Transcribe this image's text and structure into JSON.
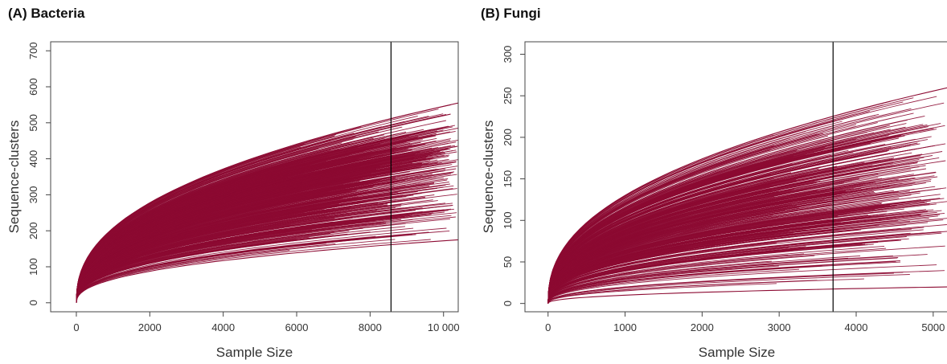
{
  "panels": {
    "a": {
      "title": "(A) Bacteria"
    },
    "b": {
      "title": "(B) Fungi"
    }
  },
  "chart_data": [
    {
      "type": "line",
      "title": "(A) Bacteria",
      "xlabel": "Sample Size",
      "ylabel": "Sequence-clusters",
      "xlim": [
        -700,
        10400
      ],
      "ylim": [
        -25,
        725
      ],
      "x_ticks": [
        0,
        2000,
        4000,
        6000,
        8000,
        10000
      ],
      "x_tick_labels": [
        "0",
        "2000",
        "4000",
        "6000",
        "8000",
        "10 000"
      ],
      "y_ticks": [
        0,
        100,
        200,
        300,
        400,
        500,
        600,
        700
      ],
      "y_tick_labels": [
        "0",
        "100",
        "200",
        "300",
        "400",
        "500",
        "600",
        "700"
      ],
      "vline_x": 8570,
      "line_color": "#8c0a32",
      "series_count": 700,
      "series_summary": {
        "x_max": 10400,
        "final_values_min": 175,
        "final_values_max": 555,
        "final_values_bulk_range": [
          300,
          500
        ],
        "curve_shape": "concave rarefaction curves rising from 0 at x=0"
      }
    },
    {
      "type": "line",
      "title": "(B) Fungi",
      "xlabel": "Sample Size",
      "ylabel": "Sequence-clusters",
      "xlim": [
        -300,
        5200
      ],
      "ylim": [
        -10,
        315
      ],
      "x_ticks": [
        0,
        1000,
        2000,
        3000,
        4000,
        5000
      ],
      "x_tick_labels": [
        "0",
        "1000",
        "2000",
        "3000",
        "4000",
        "5000"
      ],
      "y_ticks": [
        0,
        50,
        100,
        150,
        200,
        250,
        300
      ],
      "y_tick_labels": [
        "0",
        "50",
        "100",
        "150",
        "200",
        "250",
        "300"
      ],
      "vline_x": 3700,
      "line_color": "#8c0a32",
      "series_count": 420,
      "series_summary": {
        "x_max": 5200,
        "final_values_min": 20,
        "final_values_max": 260,
        "final_values_bulk_range": [
          100,
          230
        ],
        "curve_shape": "concave rarefaction curves rising from 0 at x=0"
      }
    }
  ]
}
